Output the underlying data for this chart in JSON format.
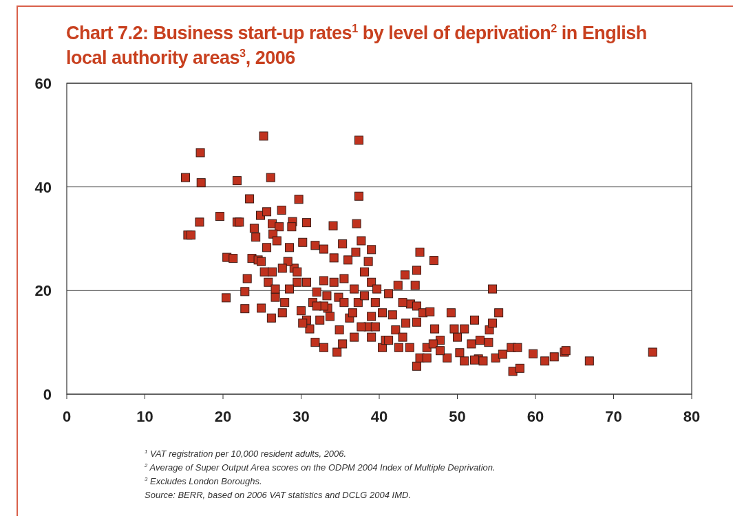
{
  "chart_data": {
    "type": "scatter",
    "title": "Chart 7.2: Business start-up rates$^{1}$ by level of deprivation$^{2}$ in English local authority areas$^{3}$, 2006",
    "annotations": [
      "$^{1}$ VAT registration per 10,000 resident adults, 2006.",
      "$^{2}$ Average of Super Output Area scores on the ODPM 2004 Index of Multiple Deprivation.",
      "$^{3}$ Excludes London Boroughs.",
      "Source: BERR, based on 2006 VAT statistics and DCLG 2004 IMD."
    ],
    "xlim": [
      0,
      80
    ],
    "ylim": [
      0,
      60
    ],
    "xticks": [
      0,
      10,
      20,
      30,
      40,
      50,
      60,
      70,
      80
    ],
    "yticks": [
      0,
      20,
      40,
      60
    ],
    "grid": "y",
    "marker": "square",
    "series": [
      {
        "color": "#c0321e",
        "x": [
          15.2,
          17.1,
          17.2,
          17.0,
          15.5,
          15.9,
          19.6,
          21.8,
          25.2,
          26.1,
          37.4,
          37.4,
          23.4,
          29.7,
          20.4,
          20.5,
          21.3,
          21.8,
          22.1,
          22.8,
          22.8,
          23.1,
          26.2,
          24.9,
          23.7,
          24.5,
          24.2,
          24.0,
          24.8,
          25.6,
          27.5,
          26.3,
          27.2,
          26.4,
          26.9,
          25.6,
          24.9,
          25.3,
          25.8,
          28.5,
          28.9,
          28.8,
          30.7,
          30.2,
          29.1,
          28.3,
          27.6,
          29.5,
          28.5,
          26.7,
          27.9,
          30.0,
          30.7,
          31.1,
          32.0,
          32.9,
          31.8,
          32.9,
          34.1,
          34.2,
          35.3,
          36.0,
          34.2,
          34.8,
          33.4,
          32.4,
          31.8,
          32.9,
          34.6,
          35.3,
          34.9,
          36.2,
          37.3,
          37.0,
          37.7,
          37.1,
          39.0,
          38.6,
          38.1,
          39.0,
          39.7,
          38.1,
          39.5,
          40.4,
          39.0,
          38.6,
          39.0,
          40.4,
          40.8,
          42.1,
          41.7,
          41.2,
          42.4,
          43.3,
          44.8,
          45.2,
          47.0,
          44.6,
          44.0,
          44.8,
          45.6,
          46.5,
          44.8,
          43.4,
          43.0,
          43.9,
          44.8,
          45.2,
          46.1,
          47.1,
          47.8,
          48.7,
          49.2,
          50.0,
          49.6,
          50.9,
          50.3,
          52.2,
          51.8,
          52.9,
          52.7,
          54.0,
          54.1,
          54.5,
          54.5,
          55.3,
          54.9,
          55.8,
          57.1,
          58.0,
          56.9,
          57.7,
          59.7,
          61.2,
          62.4,
          63.7,
          63.9,
          66.9,
          75.0,
          53.3,
          52.2,
          27.6,
          30.2,
          31.5,
          33.3,
          35.5,
          36.6,
          37.7,
          36.8,
          39.5,
          41.2,
          42.5,
          46.9,
          47.8,
          50.9,
          46.1,
          43.0,
          35.5,
          36.8,
          32.9,
          29.5,
          26.3,
          26.7,
          30.7,
          32.0,
          33.7
        ],
        "values": [
          41.8,
          46.6,
          40.8,
          33.2,
          30.7,
          30.7,
          34.3,
          41.2,
          49.8,
          41.8,
          49.0,
          38.2,
          37.7,
          37.6,
          18.6,
          26.4,
          26.2,
          33.2,
          33.2,
          16.5,
          19.8,
          22.3,
          14.7,
          16.6,
          26.2,
          25.9,
          30.3,
          32.0,
          34.5,
          35.2,
          35.5,
          32.9,
          32.3,
          30.9,
          29.6,
          28.3,
          25.6,
          23.6,
          21.6,
          28.3,
          33.3,
          32.3,
          33.1,
          29.3,
          24.3,
          25.6,
          24.3,
          21.6,
          20.3,
          18.7,
          17.7,
          16.1,
          14.3,
          12.6,
          19.7,
          21.9,
          28.7,
          28.0,
          32.5,
          26.3,
          29.0,
          25.9,
          21.6,
          18.7,
          16.6,
          14.3,
          10.0,
          9.0,
          8.1,
          9.7,
          12.4,
          14.7,
          17.7,
          27.4,
          29.6,
          32.9,
          27.9,
          25.6,
          23.6,
          21.6,
          20.3,
          19.0,
          17.7,
          15.7,
          15.0,
          13.0,
          11.0,
          9.0,
          10.4,
          12.4,
          15.3,
          19.4,
          21.0,
          23.0,
          23.9,
          27.4,
          25.8,
          21.0,
          17.4,
          17.0,
          15.7,
          15.9,
          13.9,
          13.7,
          11.0,
          9.0,
          5.4,
          7.0,
          9.0,
          12.6,
          10.4,
          7.0,
          15.7,
          11.0,
          12.6,
          12.6,
          8.0,
          14.3,
          9.7,
          10.4,
          6.8,
          10.0,
          12.4,
          13.7,
          20.3,
          15.7,
          7.0,
          7.7,
          4.4,
          5.0,
          9.0,
          9.0,
          7.8,
          6.4,
          7.2,
          8.1,
          8.4,
          6.4,
          8.1,
          6.4,
          6.6,
          15.7,
          13.7,
          17.7,
          19.0,
          17.7,
          15.7,
          13.0,
          11.0,
          13.0,
          10.4,
          9.0,
          9.7,
          8.4,
          6.4,
          7.0,
          17.7,
          22.3,
          20.3,
          17.0,
          23.6,
          23.6,
          20.3,
          21.6,
          17.0,
          15.0
        ]
      }
    ]
  }
}
